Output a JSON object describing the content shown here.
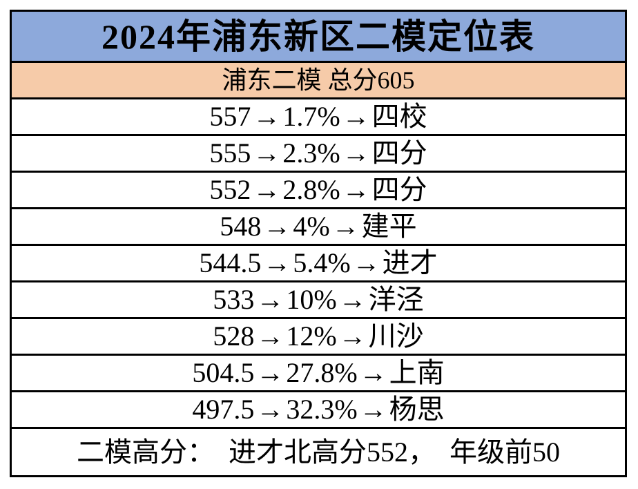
{
  "title": {
    "text": "2024年浦东新区二模定位表",
    "bg_color": "#8DA9DB"
  },
  "subtitle": {
    "text": "浦东二模 总分605",
    "bg_color": "#F6CBA9"
  },
  "arrow": "→",
  "rows": [
    {
      "score": "557",
      "percentile": "1.7%",
      "school": "四校"
    },
    {
      "score": "555",
      "percentile": "2.3%",
      "school": "四分"
    },
    {
      "score": "552",
      "percentile": "2.8%",
      "school": "四分"
    },
    {
      "score": "548",
      "percentile": "4%",
      "school": "建平"
    },
    {
      "score": "544.5",
      "percentile": "5.4%",
      "school": "进才"
    },
    {
      "score": "533",
      "percentile": "10%",
      "school": "洋泾"
    },
    {
      "score": "528",
      "percentile": "12%",
      "school": "川沙"
    },
    {
      "score": "504.5",
      "percentile": "27.8%",
      "school": "上南"
    },
    {
      "score": "497.5",
      "percentile": "32.3%",
      "school": "杨思"
    }
  ],
  "footer": {
    "text": "二模高分：　进才北高分552，　年级前50"
  },
  "colors": {
    "border": "#000000",
    "text": "#000000",
    "page_bg": "#ffffff"
  }
}
